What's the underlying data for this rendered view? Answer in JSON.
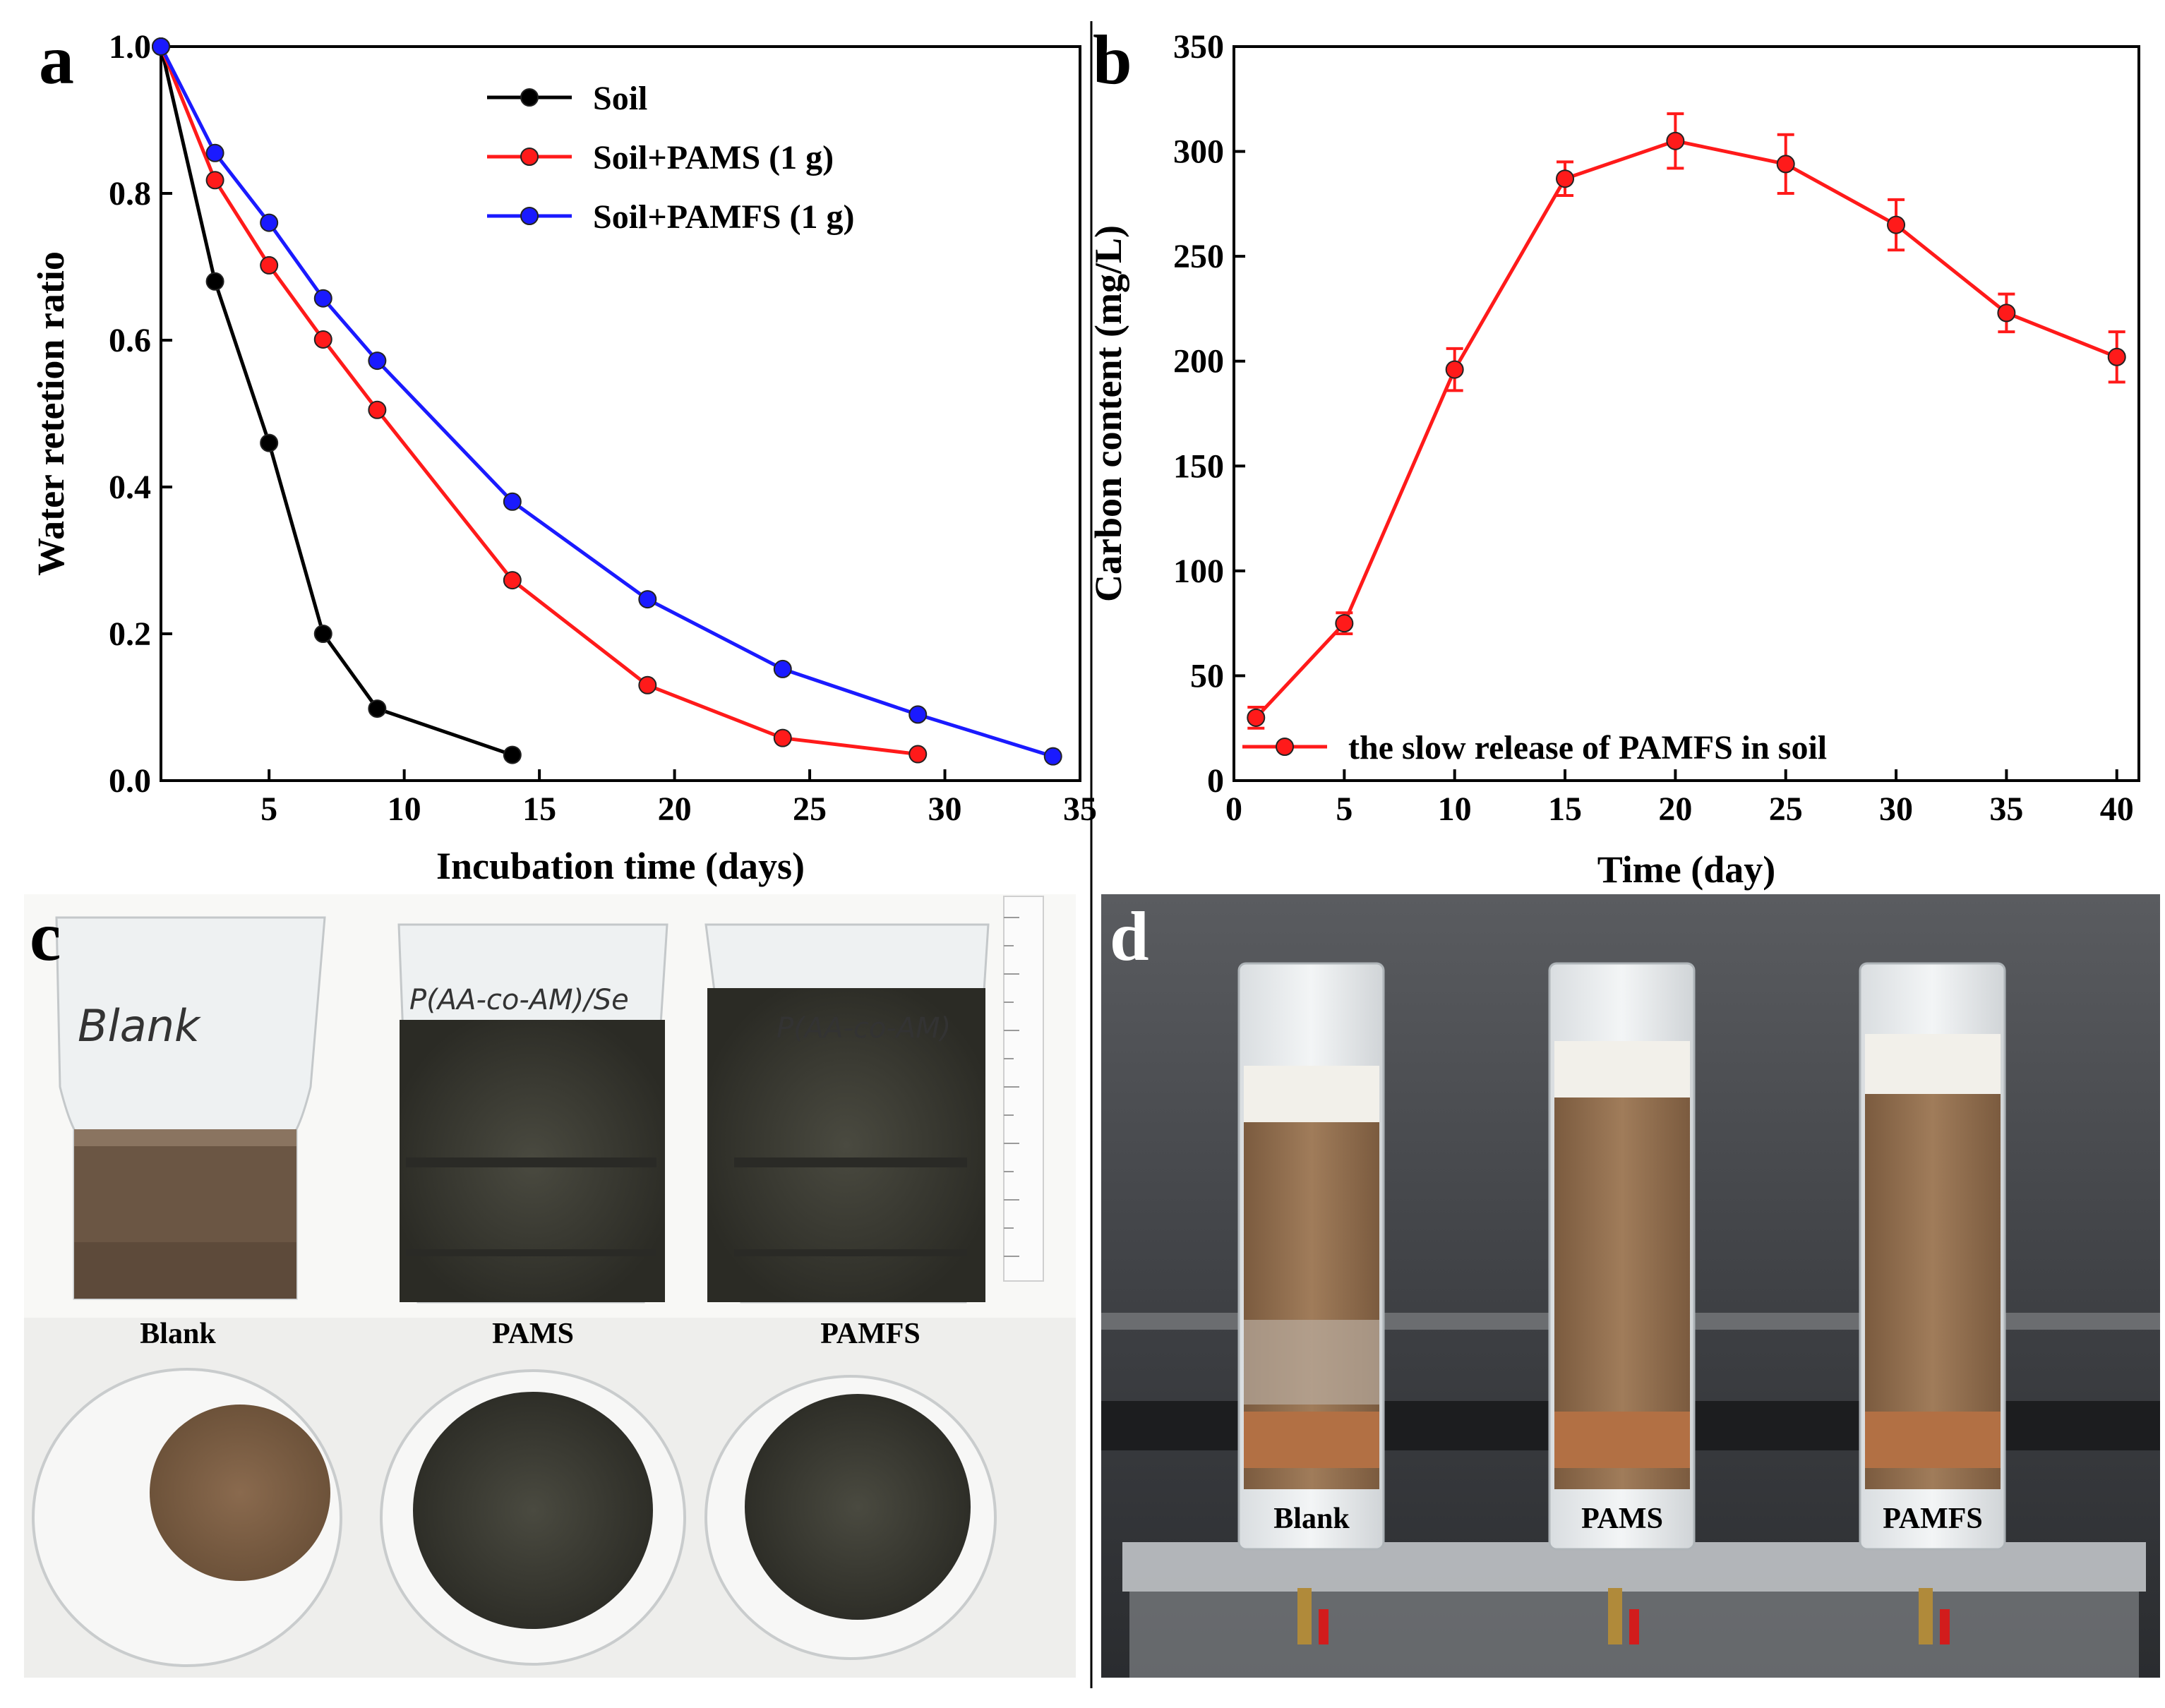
{
  "chart_data": [
    {
      "panel": "a",
      "type": "line",
      "xlabel": "Incubation time (days)",
      "ylabel": "Water retetion ratio",
      "xlim": [
        1,
        35
      ],
      "ylim": [
        0.0,
        1.0
      ],
      "xticks": [
        5,
        10,
        15,
        20,
        25,
        30,
        35
      ],
      "yticks": [
        0.0,
        0.2,
        0.4,
        0.6,
        0.8,
        1.0
      ],
      "ytick_labels": [
        "0.0",
        "0.2",
        "0.4",
        "0.6",
        "0.8",
        "1.0"
      ],
      "legend_position": "top-center",
      "series": [
        {
          "name": "Soil",
          "color": "#000000",
          "x": [
            1,
            3,
            5,
            7,
            9,
            14
          ],
          "y": [
            1.0,
            0.68,
            0.46,
            0.2,
            0.098,
            0.035
          ]
        },
        {
          "name": "Soil+PAMS (1 g)",
          "color": "#ff1a1a",
          "x": [
            1,
            3,
            5,
            7,
            9,
            14,
            19,
            24,
            29
          ],
          "y": [
            1.0,
            0.818,
            0.702,
            0.601,
            0.505,
            0.273,
            0.13,
            0.058,
            0.036
          ]
        },
        {
          "name": "Soil+PAMFS (1 g)",
          "color": "#1a1aff",
          "x": [
            1,
            3,
            5,
            7,
            9,
            14,
            19,
            24,
            29,
            34
          ],
          "y": [
            1.0,
            0.855,
            0.76,
            0.657,
            0.572,
            0.38,
            0.247,
            0.152,
            0.09,
            0.033
          ]
        }
      ]
    },
    {
      "panel": "b",
      "type": "line",
      "xlabel": "Time (day)",
      "ylabel": "Carbon content (mg/L)",
      "xlim": [
        0,
        41
      ],
      "ylim": [
        0,
        350
      ],
      "xticks": [
        0,
        5,
        10,
        15,
        20,
        25,
        30,
        35,
        40
      ],
      "yticks": [
        0,
        50,
        100,
        150,
        200,
        250,
        300,
        350
      ],
      "legend_position": "bottom",
      "series": [
        {
          "name": "the slow release of PAMFS in soil",
          "color": "#ff1a1a",
          "x": [
            1,
            5,
            10,
            15,
            20,
            25,
            30,
            35,
            40
          ],
          "y": [
            30,
            75,
            196,
            287,
            305,
            294,
            265,
            223,
            202
          ],
          "error": [
            5,
            5,
            10,
            8,
            13,
            14,
            12,
            9,
            12
          ]
        }
      ]
    }
  ],
  "photo_c": {
    "letter": "c",
    "labels": [
      "Blank",
      "PAMS",
      "PAMFS"
    ],
    "handwriting": [
      "Blank",
      "P(AA-co-AM)/Se",
      "P(AA-co-AM)"
    ]
  },
  "photo_d": {
    "letter": "d",
    "labels": [
      "Blank",
      "PAMS",
      "PAMFS"
    ]
  },
  "colors": {
    "soil": "#000000",
    "pams": "#ff1a1a",
    "pamfs": "#1a1aff",
    "soil_brown": "#8a6a4e",
    "background_lab": "#45474a"
  }
}
